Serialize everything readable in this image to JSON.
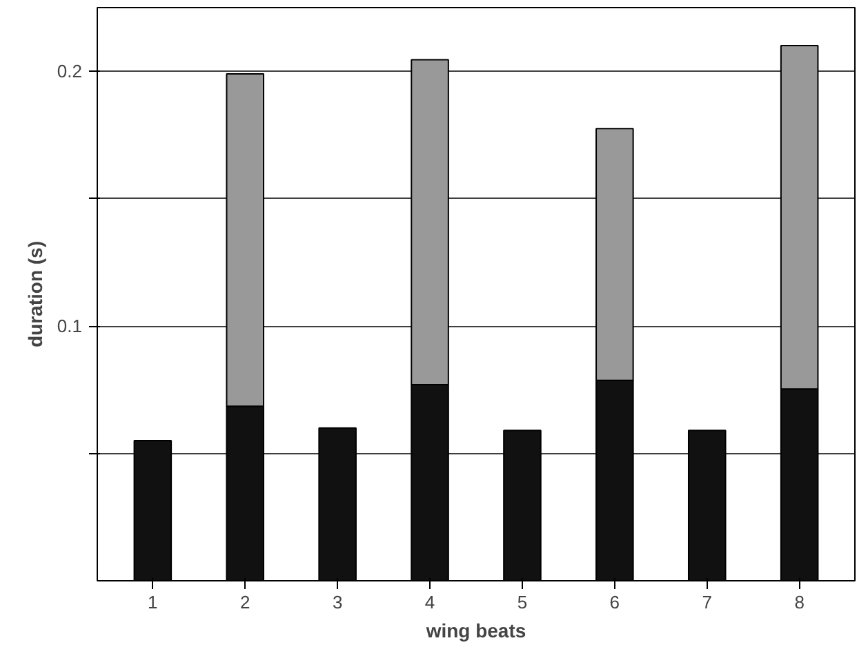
{
  "chart_data": {
    "type": "bar",
    "xlabel": "wing beats",
    "ylabel": "duration (s)",
    "categories": [
      "1",
      "2",
      "3",
      "4",
      "5",
      "6",
      "7",
      "8"
    ],
    "stacked": true,
    "series": [
      {
        "color": "#111111",
        "values": [
          0.055,
          0.0685,
          0.06,
          0.077,
          0.059,
          0.0787,
          0.059,
          0.0753
        ]
      },
      {
        "color": "#999999",
        "values": [
          null,
          0.1305,
          null,
          0.1275,
          null,
          0.0988,
          null,
          0.1348
        ]
      }
    ],
    "ylim": [
      0,
      0.225
    ],
    "yticks": [
      {
        "value": 0.05,
        "label": null
      },
      0.1,
      {
        "value": 0.15,
        "label": null
      },
      0.2
    ],
    "grid": "y"
  }
}
